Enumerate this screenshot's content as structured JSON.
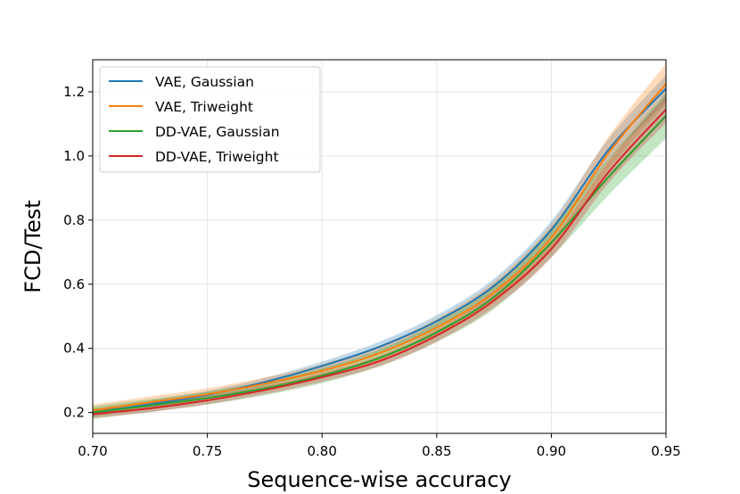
{
  "chart_data": {
    "type": "line",
    "title": "",
    "xlabel": "Sequence-wise accuracy",
    "ylabel": "FCD/Test",
    "xlim": [
      0.7,
      0.95
    ],
    "ylim": [
      0.135,
      1.3
    ],
    "xticks": [
      0.7,
      0.75,
      0.8,
      0.85,
      0.9,
      0.95
    ],
    "xtick_labels": [
      "0.70",
      "0.75",
      "0.80",
      "0.85",
      "0.90",
      "0.95"
    ],
    "yticks": [
      0.2,
      0.4,
      0.6,
      0.8,
      1.0,
      1.2
    ],
    "ytick_labels": [
      "0.2",
      "0.4",
      "0.6",
      "0.8",
      "1.0",
      "1.2"
    ],
    "grid": true,
    "legend_position": "upper-left",
    "x": [
      0.7,
      0.725,
      0.75,
      0.775,
      0.8,
      0.825,
      0.85,
      0.875,
      0.9,
      0.925,
      0.95
    ],
    "series": [
      {
        "name": "VAE, Gaussian",
        "color": "#1f77b4",
        "values": [
          0.2,
          0.226,
          0.255,
          0.295,
          0.345,
          0.405,
          0.485,
          0.595,
          0.77,
          1.02,
          1.21
        ],
        "band": 0.012
      },
      {
        "name": "VAE, Triweight",
        "color": "#ff7f0e",
        "values": [
          0.207,
          0.232,
          0.257,
          0.29,
          0.33,
          0.385,
          0.465,
          0.575,
          0.745,
          1.01,
          1.225
        ],
        "band": 0.018
      },
      {
        "name": "DD-VAE, Gaussian",
        "color": "#2ca02c",
        "values": [
          0.2,
          0.222,
          0.245,
          0.275,
          0.315,
          0.37,
          0.45,
          0.56,
          0.73,
          0.935,
          1.125
        ],
        "band": 0.02
      },
      {
        "name": "DD-VAE, Triweight",
        "color": "#d62728",
        "values": [
          0.195,
          0.213,
          0.238,
          0.27,
          0.31,
          0.36,
          0.44,
          0.55,
          0.71,
          0.95,
          1.145
        ],
        "band": 0.012
      }
    ]
  }
}
